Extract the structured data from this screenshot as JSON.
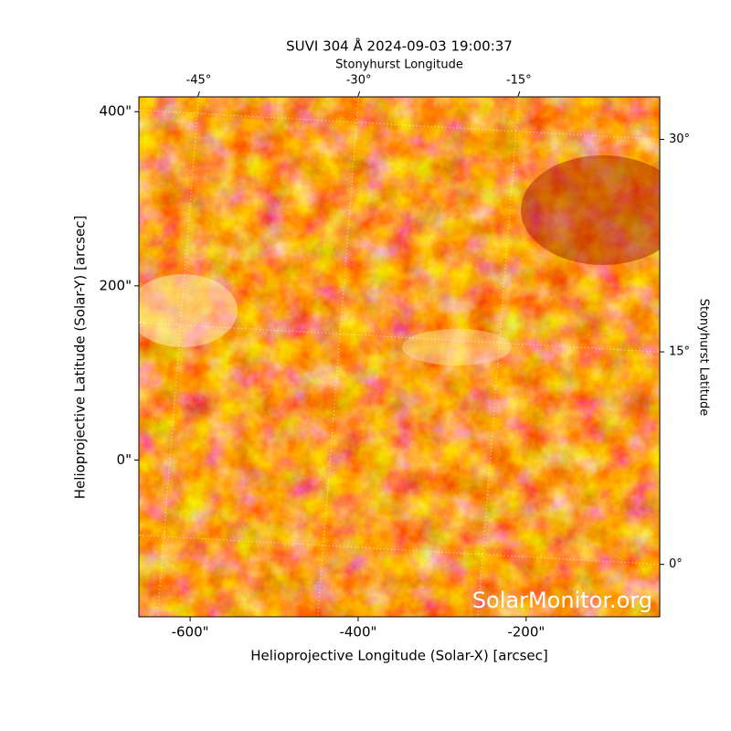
{
  "chart_data": {
    "type": "image",
    "title": "SUVI 304 Å 2024-09-03 19:00:37",
    "x_label": "Helioprojective Longitude (Solar-X) [arcsec]",
    "y_label": "Helioprojective Latitude (Solar-Y) [arcsec]",
    "x2_label": "Stonyhurst Longitude",
    "y2_label": "Stonyhurst Latitude",
    "watermark": "SolarMonitor.org",
    "xlim": [
      -661,
      -41
    ],
    "ylim": [
      -180,
      417
    ],
    "xticks": [
      {
        "value": -600,
        "label": "-600\""
      },
      {
        "value": -400,
        "label": "-400\""
      },
      {
        "value": -200,
        "label": "-200\""
      }
    ],
    "yticks": [
      {
        "value": 0,
        "label": "0\""
      },
      {
        "value": 200,
        "label": "200\""
      },
      {
        "value": 400,
        "label": "400\""
      }
    ],
    "x2lim": [
      -50.6,
      -1.8
    ],
    "x2ticks": [
      {
        "value": -45,
        "label": "-45°"
      },
      {
        "value": -30,
        "label": "-30°"
      },
      {
        "value": -15,
        "label": "-15°"
      }
    ],
    "y2lim": [
      -3.7,
      33
    ],
    "y2ticks": [
      {
        "value": 0,
        "label": "0°"
      },
      {
        "value": 15,
        "label": "15°"
      },
      {
        "value": 30,
        "label": "30°"
      }
    ],
    "grid": true
  }
}
